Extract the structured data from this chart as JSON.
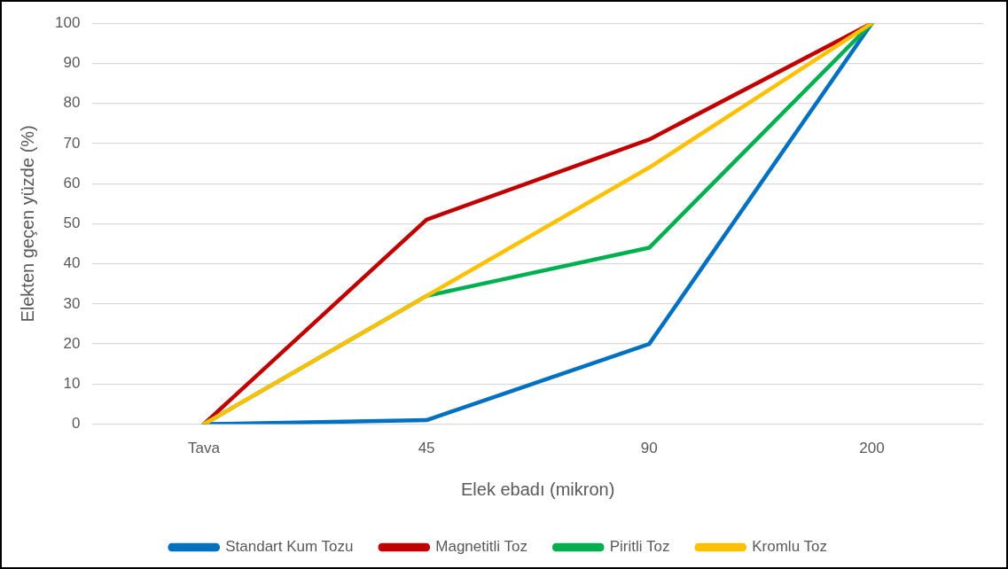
{
  "chart_data": {
    "type": "line",
    "xlabel": "Elek ebadı (mikron)",
    "ylabel": "Elekten geçen yüzde (%)",
    "categories": [
      "Tava",
      "45",
      "90",
      "200"
    ],
    "series": [
      {
        "name": "Standart Kum Tozu",
        "color": "#0070c0",
        "values": [
          0,
          1,
          20,
          100
        ]
      },
      {
        "name": "Magnetitli Toz",
        "color": "#c00000",
        "values": [
          0,
          51,
          71,
          100
        ]
      },
      {
        "name": "Piritli Toz",
        "color": "#00b050",
        "values": [
          0,
          32,
          44,
          100
        ]
      },
      {
        "name": "Kromlu Toz",
        "color": "#ffc000",
        "values": [
          0,
          32,
          64,
          100
        ]
      }
    ],
    "ylim": [
      0,
      100
    ],
    "yticks": [
      0,
      10,
      20,
      30,
      40,
      50,
      60,
      70,
      80,
      90,
      100
    ],
    "grid": "y",
    "legend": "bottom",
    "marker": "none",
    "line_style": "solid"
  }
}
